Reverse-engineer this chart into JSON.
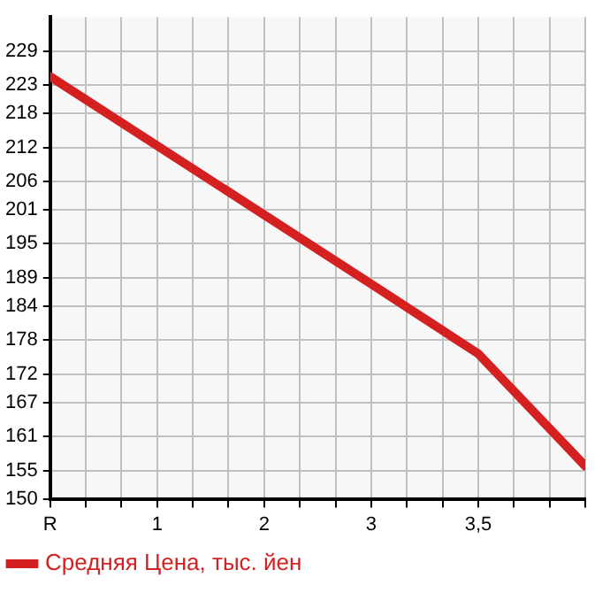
{
  "chart_data": {
    "type": "line",
    "categories": [
      "R",
      "1",
      "2",
      "3",
      "3,5",
      null
    ],
    "series": [
      {
        "name": "Средняя Цена, тыс. йен",
        "color": "#d42020",
        "values": [
          224.5,
          212.3,
          200.1,
          187.9,
          175.6,
          155.8
        ]
      }
    ],
    "ylim": [
      150,
      235
    ],
    "yticks": [
      150,
      155,
      161,
      167,
      172,
      178,
      184,
      189,
      195,
      201,
      206,
      212,
      218,
      223,
      229
    ],
    "grid": true,
    "legend": "bottom left",
    "marker": "none",
    "line_style": "solid"
  }
}
